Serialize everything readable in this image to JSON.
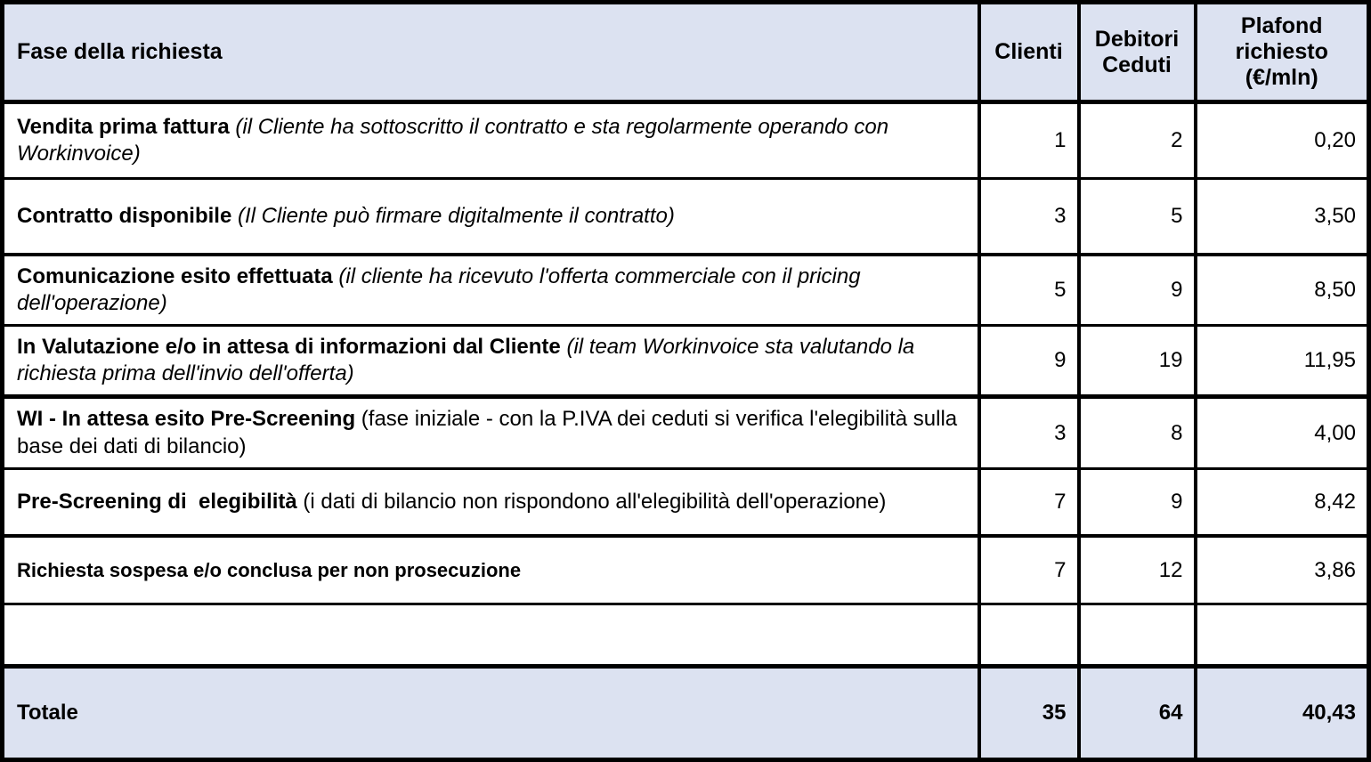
{
  "colors": {
    "header_background": "#dce2f1",
    "total_background": "#dce2f1",
    "border": "#000000",
    "text": "#000000"
  },
  "table": {
    "columns": {
      "fase": "Fase della richiesta",
      "clienti": "Clienti",
      "debitori": "Debitori Ceduti",
      "plafond": "Plafond richiesto (€/mln)"
    },
    "rows": [
      {
        "title": "Vendita prima fattura",
        "description": "(il Cliente ha sottoscritto il contratto e sta regolarmente operando con Workinvoice)",
        "italic": true,
        "small": false,
        "clienti": "1",
        "debitori": "2",
        "plafond": "0,20"
      },
      {
        "title": "Contratto disponibile",
        "description": "(Il Cliente può firmare digitalmente il contratto)",
        "italic": true,
        "small": false,
        "clienti": "3",
        "debitori": "5",
        "plafond": "3,50"
      },
      {
        "title": "Comunicazione esito effettuata",
        "description": "(il cliente ha ricevuto l'offerta commerciale con il pricing dell'operazione)",
        "italic": true,
        "small": false,
        "clienti": "5",
        "debitori": "9",
        "plafond": "8,50"
      },
      {
        "title": "In Valutazione e/o in attesa di informazioni dal Cliente",
        "description": "(il team Workinvoice sta valutando la richiesta prima dell'invio dell'offerta)",
        "italic": true,
        "small": false,
        "clienti": "9",
        "debitori": "19",
        "plafond": "11,95"
      },
      {
        "title": "WI - In attesa esito Pre-Screening",
        "description": "(fase iniziale - con la P.IVA dei ceduti si verifica l'elegibilità sulla base dei dati di bilancio)",
        "italic": false,
        "small": false,
        "clienti": "3",
        "debitori": "8",
        "plafond": "4,00"
      },
      {
        "title": "Pre-Screening di  elegibilità",
        "description": "(i dati di bilancio non rispondono all'elegibilità dell'operazione)",
        "italic": false,
        "small": false,
        "clienti": "7",
        "debitori": "9",
        "plafond": "8,42"
      },
      {
        "title": "Richiesta sospesa e/o conclusa per non prosecuzione",
        "description": "",
        "italic": false,
        "small": true,
        "clienti": "7",
        "debitori": "12",
        "plafond": "3,86"
      },
      {
        "title": "",
        "description": "",
        "italic": false,
        "small": false,
        "clienti": "",
        "debitori": "",
        "plafond": ""
      }
    ],
    "total": {
      "label": "Totale",
      "clienti": "35",
      "debitori": "64",
      "plafond": "40,43"
    }
  },
  "chart_data": {
    "type": "table",
    "title": "Fase della richiesta",
    "columns": [
      "Fase della richiesta",
      "Clienti",
      "Debitori Ceduti",
      "Plafond richiesto (€/mln)"
    ],
    "rows": [
      [
        "Vendita prima fattura (il Cliente ha sottoscritto il contratto e sta regolarmente operando con Workinvoice)",
        1,
        2,
        "0,20"
      ],
      [
        "Contratto disponibile (Il Cliente può firmare digitalmente il contratto)",
        3,
        5,
        "3,50"
      ],
      [
        "Comunicazione esito effettuata (il cliente ha ricevuto l'offerta commerciale con il pricing dell'operazione)",
        5,
        9,
        "8,50"
      ],
      [
        "In Valutazione e/o in attesa di informazioni dal Cliente (il team Workinvoice sta valutando la richiesta prima dell'invio dell'offerta)",
        9,
        19,
        "11,95"
      ],
      [
        "WI - In attesa esito Pre-Screening (fase iniziale - con la P.IVA dei ceduti si verifica l'elegibilità sulla base dei dati di bilancio)",
        3,
        8,
        "4,00"
      ],
      [
        "Pre-Screening di  elegibilità (i dati di bilancio non rispondono all'elegibilità dell'operazione)",
        7,
        9,
        "8,42"
      ],
      [
        "Richiesta sospesa e/o conclusa per non prosecuzione",
        7,
        12,
        "3,86"
      ],
      [
        "",
        null,
        null,
        ""
      ]
    ],
    "totals_row": [
      "Totale",
      35,
      64,
      "40,43"
    ]
  }
}
